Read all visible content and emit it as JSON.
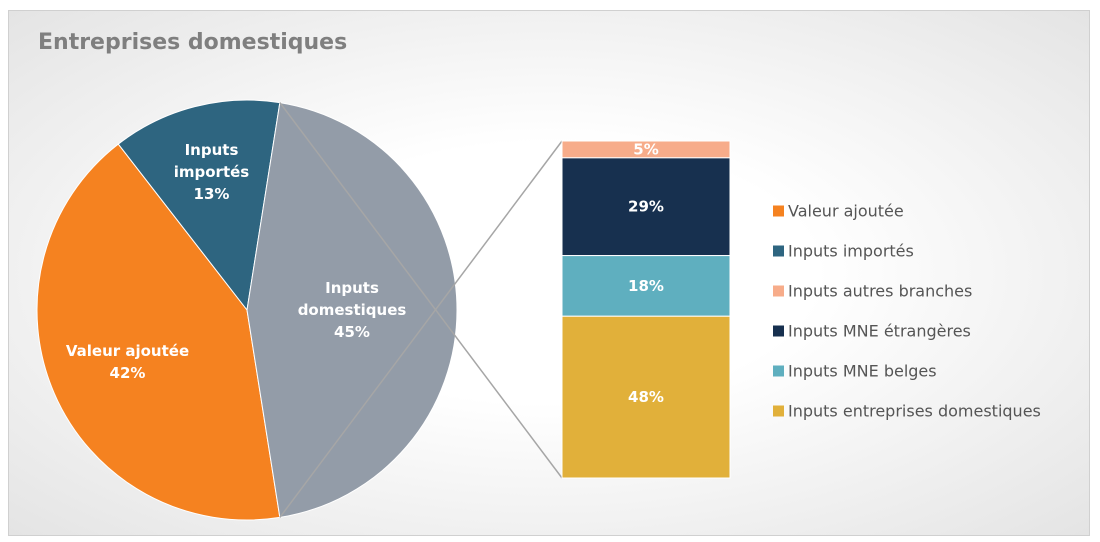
{
  "chart_data": {
    "type": "bar-of-pie",
    "title": "Entreprises domestiques",
    "pie": {
      "categories": [
        "Valeur ajoutée",
        "Inputs importés",
        "Inputs domestiques"
      ],
      "values": [
        42,
        13,
        45
      ],
      "value_labels": [
        "42%",
        "13%",
        "45%"
      ],
      "colors": [
        "#f58220",
        "#2e6580",
        "#939ca8"
      ]
    },
    "bar": {
      "categories": [
        "Inputs autres branches",
        "Inputs MNE étrangères",
        "Inputs MNE belges",
        "Inputs entreprises domestiques"
      ],
      "values": [
        5,
        29,
        18,
        48
      ],
      "value_labels": [
        "5%",
        "29%",
        "18%",
        "48%"
      ],
      "colors": [
        "#f7ac8a",
        "#17304f",
        "#5fafbf",
        "#e1b03a"
      ]
    }
  }
}
